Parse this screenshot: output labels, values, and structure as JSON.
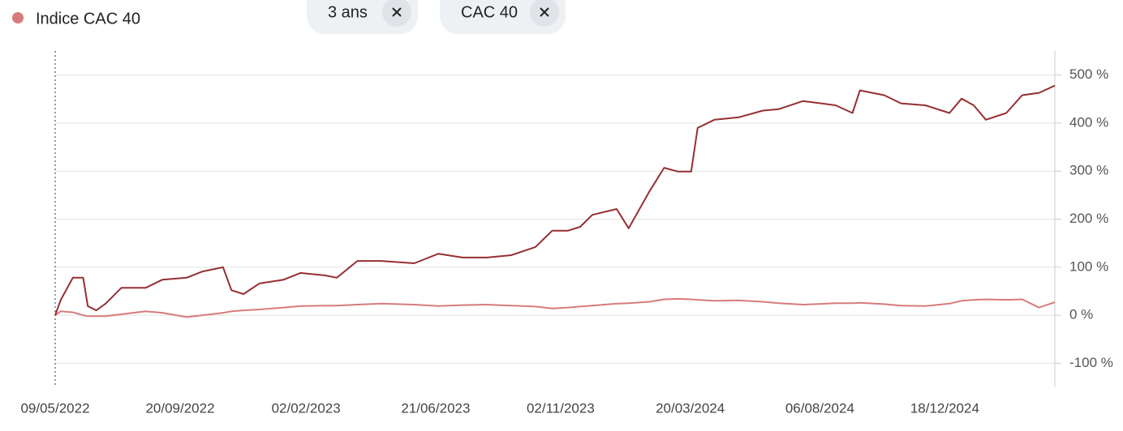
{
  "chart_data": {
    "type": "line",
    "x": [
      "09/05/2022",
      "15/05/2022",
      "28/05/2022",
      "08/06/2022",
      "13/06/2022",
      "22/06/2022",
      "02/07/2022",
      "19/07/2022",
      "14/08/2022",
      "01/09/2022",
      "27/09/2022",
      "14/10/2022",
      "05/11/2022",
      "14/11/2022",
      "27/11/2022",
      "14/12/2022",
      "09/01/2023",
      "27/01/2023",
      "22/02/2023",
      "07/03/2023",
      "29/03/2023",
      "24/04/2023",
      "29/05/2023",
      "24/06/2023",
      "20/07/2023",
      "15/08/2023",
      "10/09/2023",
      "06/10/2023",
      "24/10/2023",
      "10/11/2023",
      "23/11/2023",
      "06/12/2023",
      "01/01/2024",
      "14/01/2024",
      "05/02/2024",
      "21/02/2024",
      "07/03/2024",
      "21/03/2024",
      "28/03/2024",
      "15/04/2024",
      "11/05/2024",
      "06/06/2024",
      "23/06/2024",
      "19/07/2024",
      "23/08/2024",
      "10/09/2024",
      "18/09/2024",
      "14/10/2024",
      "01/11/2024",
      "27/11/2024",
      "23/12/2024",
      "05/01/2025",
      "18/01/2025",
      "31/01/2025",
      "22/02/2025",
      "11/03/2025",
      "29/03/2025",
      "15/04/2025"
    ],
    "series": [
      {
        "color": "#962f33",
        "values": [
          0,
          32,
          78,
          78,
          19,
          10,
          24,
          57,
          57,
          74,
          78,
          91,
          100,
          52,
          44,
          66,
          74,
          88,
          83,
          78,
          113,
          113,
          108,
          128,
          120,
          120,
          125,
          142,
          176,
          176,
          184,
          209,
          221,
          181,
          257,
          307,
          299,
          299,
          390,
          407,
          412,
          426,
          429,
          446,
          437,
          421,
          468,
          458,
          441,
          437,
          421,
          451,
          437,
          407,
          421,
          458,
          463,
          478
        ]
      },
      {
        "name": "Indice CAC 40",
        "color": "#d87b7b",
        "values": [
          0,
          8,
          6,
          0,
          -2,
          -2,
          -2,
          2,
          8,
          5,
          -4,
          0,
          5,
          8,
          10,
          12,
          16,
          19,
          20,
          20,
          22,
          24,
          22,
          19,
          21,
          22,
          20,
          18,
          14,
          16,
          18,
          20,
          24,
          25,
          28,
          33,
          34,
          33,
          32,
          30,
          31,
          28,
          25,
          22,
          25,
          25,
          26,
          23,
          20,
          19,
          24,
          30,
          32,
          33,
          32,
          33,
          16,
          27
        ]
      }
    ],
    "xlim": [
      "09/05/2022",
      "15/04/2025"
    ],
    "xticks": [
      "09/05/2022",
      "20/09/2022",
      "02/02/2023",
      "21/06/2023",
      "02/11/2023",
      "20/03/2024",
      "06/08/2024",
      "18/12/2024"
    ],
    "ylim": [
      -150,
      550
    ],
    "yticks": [
      {
        "value": -100,
        "label": "-100 %"
      },
      {
        "value": 0,
        "label": "0 %"
      },
      {
        "value": 100,
        "label": "100 %"
      },
      {
        "value": 200,
        "label": "200 %"
      },
      {
        "value": 300,
        "label": "300 %"
      },
      {
        "value": 400,
        "label": "400 %"
      },
      {
        "value": 500,
        "label": "500 %"
      }
    ],
    "grid": true
  },
  "filters": [
    "3 ans",
    "CAC 40"
  ]
}
